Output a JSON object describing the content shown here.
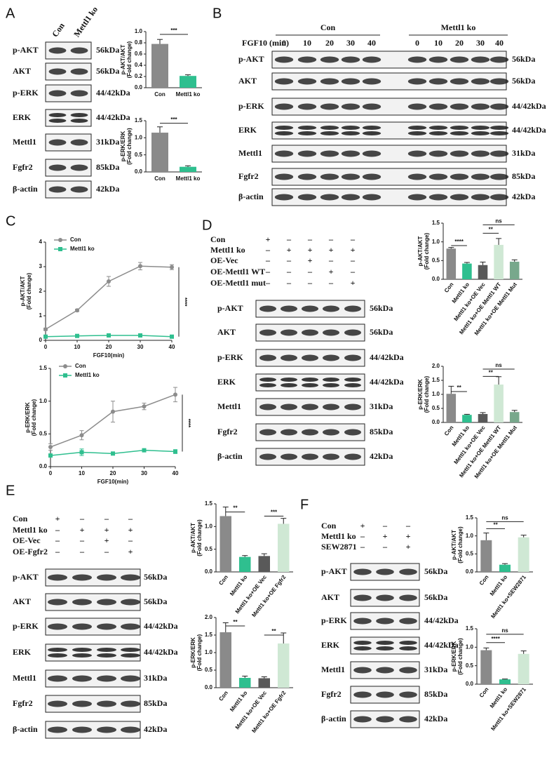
{
  "panels": [
    {
      "label": "A",
      "blot": {
        "lanes": [
          "Con",
          "Mettl1 ko"
        ],
        "rows": [
          {
            "name": "p-AKT",
            "size": "56kDa"
          },
          {
            "name": "AKT",
            "size": "56kDa"
          },
          {
            "name": "p-ERK",
            "size": "44/42kDa"
          },
          {
            "name": "ERK",
            "size": "44/42kDa"
          },
          {
            "name": "Mettl1",
            "size": "31kDa"
          },
          {
            "name": "Fgfr2",
            "size": "85kDa"
          },
          {
            "name": "β-actin",
            "size": "42kDa"
          }
        ]
      }
    },
    {
      "label": "B",
      "blot": {
        "groups": [
          "Con",
          "Mettl1 ko"
        ],
        "time_label": "FGF10 (min)",
        "times": [
          "0",
          "10",
          "20",
          "30",
          "40",
          "0",
          "10",
          "20",
          "30",
          "40"
        ],
        "rows": [
          {
            "name": "p-AKT",
            "size": "56kDa"
          },
          {
            "name": "AKT",
            "size": "56kDa"
          },
          {
            "name": "p-ERK",
            "size": "44/42kDa"
          },
          {
            "name": "ERK",
            "size": "44/42kDa"
          },
          {
            "name": "Mettl1",
            "size": "31kDa"
          },
          {
            "name": "Fgfr2",
            "size": "85kDa"
          },
          {
            "name": "β-actin",
            "size": "42kDa"
          }
        ]
      }
    },
    {
      "label": "C"
    },
    {
      "label": "D",
      "blot": {
        "conditions": [
          {
            "name": "Con",
            "signs": [
              "+",
              "–",
              "–",
              "–",
              "–"
            ]
          },
          {
            "name": "Mettl1 ko",
            "signs": [
              "–",
              "+",
              "+",
              "+",
              "+"
            ]
          },
          {
            "name": "OE-Vec",
            "signs": [
              "–",
              "–",
              "+",
              "–",
              "–"
            ]
          },
          {
            "name": "OE-Mettl1 WT",
            "signs": [
              "–",
              "–",
              "–",
              "+",
              "–"
            ]
          },
          {
            "name": "OE-Mettl1 mut",
            "signs": [
              "–",
              "–",
              "–",
              "–",
              "+"
            ]
          }
        ],
        "rows": [
          {
            "name": "p-AKT",
            "size": "56kDa"
          },
          {
            "name": "AKT",
            "size": "56kDa"
          },
          {
            "name": "p-ERK",
            "size": "44/42kDa"
          },
          {
            "name": "ERK",
            "size": "44/42kDa"
          },
          {
            "name": "Mettl1",
            "size": "31kDa"
          },
          {
            "name": "Fgfr2",
            "size": "85kDa"
          },
          {
            "name": "β-actin",
            "size": "42kDa"
          }
        ]
      }
    },
    {
      "label": "E",
      "blot": {
        "conditions": [
          {
            "name": "Con",
            "signs": [
              "+",
              "–",
              "–",
              "–"
            ]
          },
          {
            "name": "Mettl1 ko",
            "signs": [
              "–",
              "+",
              "+",
              "+"
            ]
          },
          {
            "name": "OE-Vec",
            "signs": [
              "–",
              "–",
              "+",
              "–"
            ]
          },
          {
            "name": "OE-Fgfr2",
            "signs": [
              "–",
              "–",
              "–",
              "+"
            ]
          }
        ],
        "rows": [
          {
            "name": "p-AKT",
            "size": "56kDa"
          },
          {
            "name": "AKT",
            "size": "56kDa"
          },
          {
            "name": "p-ERK",
            "size": "44/42kDa"
          },
          {
            "name": "ERK",
            "size": "44/42kDa"
          },
          {
            "name": "Mettl1",
            "size": "31kDa"
          },
          {
            "name": "Fgfr2",
            "size": "85kDa"
          },
          {
            "name": "β-actin",
            "size": "42kDa"
          }
        ]
      }
    },
    {
      "label": "F",
      "blot": {
        "conditions": [
          {
            "name": "Con",
            "signs": [
              "+",
              "–",
              "–"
            ]
          },
          {
            "name": "Mettl1 ko",
            "signs": [
              "–",
              "+",
              "+"
            ]
          },
          {
            "name": "SEW2871",
            "signs": [
              "–",
              "–",
              "+"
            ]
          }
        ],
        "rows": [
          {
            "name": "p-AKT",
            "size": "56kDa"
          },
          {
            "name": "AKT",
            "size": "56kDa"
          },
          {
            "name": "p-ERK",
            "size": "44/42kDa"
          },
          {
            "name": "ERK",
            "size": "44/42kDa"
          },
          {
            "name": "Mettl1",
            "size": "31kDa"
          },
          {
            "name": "Fgfr2",
            "size": "85kDa"
          },
          {
            "name": "β-actin",
            "size": "42kDa"
          }
        ]
      }
    }
  ],
  "chart_data": [
    {
      "type": "bar",
      "y_label": "p-AKT/AKT",
      "y_sublabel": "(Fold change)",
      "categories": [
        "Con",
        "Mettl1 ko"
      ],
      "values": [
        0.78,
        0.21
      ],
      "errors": [
        0.08,
        0.02
      ],
      "colors": [
        "#8a8a8a",
        "#2fbf8f"
      ],
      "ylim": [
        0,
        1
      ],
      "yticks": [
        {
          "value": 0,
          "label": "0.0"
        },
        {
          "value": 0.2,
          "label": "0.2"
        },
        {
          "value": 0.4,
          "label": "0.4"
        },
        {
          "value": 0.6,
          "label": "0.6"
        },
        {
          "value": 0.8,
          "label": "0.8"
        },
        {
          "value": 1,
          "label": "1.0"
        }
      ],
      "significance": [
        "***"
      ]
    },
    {
      "type": "bar",
      "y_label": "p-ERK/ERK",
      "y_sublabel": "(Fold change)",
      "categories": [
        "Con",
        "Mettl1 ko"
      ],
      "values": [
        1.15,
        0.15
      ],
      "errors": [
        0.17,
        0.03
      ],
      "colors": [
        "#8a8a8a",
        "#2fbf8f"
      ],
      "ylim": [
        0,
        1.5
      ],
      "yticks": [
        {
          "value": 0,
          "label": "0.0"
        },
        {
          "value": 0.5,
          "label": "0.5"
        },
        {
          "value": 1,
          "label": "1.0"
        },
        {
          "value": 1.5,
          "label": "1.5"
        }
      ],
      "significance": [
        "***"
      ]
    },
    {
      "type": "line",
      "y_label": "p-AKT/AKT",
      "y_sublabel": "(Fold change)",
      "x_label": "FGF10(min)",
      "x": [
        0,
        10,
        20,
        30,
        40
      ],
      "xlim": [
        0,
        40
      ],
      "xticks": [
        0,
        10,
        20,
        30,
        40
      ],
      "ylim": [
        0,
        4
      ],
      "yticks": [
        0,
        1,
        2,
        3,
        4
      ],
      "series": [
        {
          "name": "Con",
          "color": "#8c8c8c",
          "values": [
            0.45,
            1.22,
            2.4,
            3.02,
            2.98
          ],
          "errors": [
            0.05,
            0.05,
            0.2,
            0.15,
            0.1
          ]
        },
        {
          "name": "Mettl1 ko",
          "color": "#2fbf8f",
          "values": [
            0.15,
            0.18,
            0.2,
            0.2,
            0.15
          ],
          "errors": [
            0.02,
            0.02,
            0.02,
            0.02,
            0.02
          ]
        }
      ],
      "significance": [
        "****"
      ]
    },
    {
      "type": "line",
      "y_label": "p-ERK/ERK",
      "y_sublabel": "(Fold change)",
      "x_label": "FGF10(min)",
      "x": [
        0,
        10,
        20,
        30,
        40
      ],
      "xlim": [
        0,
        40
      ],
      "xticks": [
        0,
        10,
        20,
        30,
        40
      ],
      "ylim": [
        0,
        1.5
      ],
      "yticks": [
        {
          "value": 0,
          "label": "0.0"
        },
        {
          "value": 0.5,
          "label": "0.5"
        },
        {
          "value": 1,
          "label": "1.0"
        },
        {
          "value": 1.5,
          "label": "1.5"
        }
      ],
      "series": [
        {
          "name": "Con",
          "color": "#8c8c8c",
          "values": [
            0.3,
            0.48,
            0.84,
            0.92,
            1.1
          ],
          "errors": [
            0.05,
            0.07,
            0.16,
            0.05,
            0.11
          ]
        },
        {
          "name": "Mettl1 ko",
          "color": "#2fbf8f",
          "values": [
            0.17,
            0.22,
            0.2,
            0.25,
            0.23
          ],
          "errors": [
            0.02,
            0.05,
            0.02,
            0.02,
            0.03
          ]
        }
      ],
      "significance": [
        "****"
      ]
    },
    {
      "type": "bar",
      "y_label": "p-AKT/AKT",
      "y_sublabel": "(Fold change)",
      "categories": [
        "Con",
        "Mettl1 ko",
        "Mettl1 ko+OE Vec",
        "Mettl1 ko+OE Mettl1 WT",
        "Mettl1 ko+OE Mettl1 Mut"
      ],
      "values": [
        0.82,
        0.42,
        0.38,
        0.92,
        0.47
      ],
      "errors": [
        0.03,
        0.03,
        0.08,
        0.17,
        0.05
      ],
      "colors": [
        "#8a8a8a",
        "#2fbf8f",
        "#595959",
        "#cfe8d4",
        "#78a88c"
      ],
      "ylim": [
        0,
        1.5
      ],
      "yticks": [
        {
          "value": 0,
          "label": "0.0"
        },
        {
          "value": 0.5,
          "label": "0.5"
        },
        {
          "value": 1,
          "label": "1.0"
        },
        {
          "value": 1.5,
          "label": "1.5"
        }
      ],
      "significance": [
        "****",
        "**",
        "ns"
      ]
    },
    {
      "type": "bar",
      "y_label": "p-ERK/ERK",
      "y_sublabel": "(Fold change)",
      "categories": [
        "Con",
        "Mettl1 ko",
        "Mettl1 ko+OE Vec",
        "Mettl1 ko+OE Mettl1 WT",
        "Mettl1 ko+OE Mettl1 Mut"
      ],
      "values": [
        1.02,
        0.27,
        0.3,
        1.35,
        0.37
      ],
      "errors": [
        0.27,
        0.02,
        0.05,
        0.28,
        0.06
      ],
      "colors": [
        "#8a8a8a",
        "#2fbf8f",
        "#595959",
        "#cfe8d4",
        "#78a88c"
      ],
      "ylim": [
        0,
        2
      ],
      "yticks": [
        {
          "value": 0,
          "label": "0.0"
        },
        {
          "value": 0.5,
          "label": "0.5"
        },
        {
          "value": 1,
          "label": "1.0"
        },
        {
          "value": 1.5,
          "label": "1.5"
        },
        {
          "value": 2,
          "label": "2.0"
        }
      ],
      "significance": [
        "**",
        "**",
        "ns"
      ]
    },
    {
      "type": "bar",
      "y_label": "p-AKT/AKT",
      "y_sublabel": "(Fold change)",
      "categories": [
        "Con",
        "Mettl1 ko",
        "Mettl1 ko+OE Vec",
        "Mettl1 ko+OE Fgfr2"
      ],
      "values": [
        1.23,
        0.33,
        0.35,
        1.06
      ],
      "errors": [
        0.2,
        0.03,
        0.05,
        0.12
      ],
      "colors": [
        "#8a8a8a",
        "#2fbf8f",
        "#595959",
        "#cfe8d4"
      ],
      "ylim": [
        0,
        1.5
      ],
      "yticks": [
        {
          "value": 0,
          "label": "0.0"
        },
        {
          "value": 0.5,
          "label": "0.5"
        },
        {
          "value": 1,
          "label": "1.0"
        },
        {
          "value": 1.5,
          "label": "1.5"
        }
      ],
      "significance": [
        "**",
        "***"
      ]
    },
    {
      "type": "bar",
      "y_label": "p-ERK/ERK",
      "y_sublabel": "(Fold change)",
      "categories": [
        "Con",
        "Mettl1 ko",
        "Mettl1 ko+OE Vec",
        "Mettl1 ko+OE Fgfr2"
      ],
      "values": [
        1.58,
        0.28,
        0.27,
        1.26
      ],
      "errors": [
        0.27,
        0.05,
        0.04,
        0.3
      ],
      "colors": [
        "#8a8a8a",
        "#2fbf8f",
        "#595959",
        "#cfe8d4"
      ],
      "ylim": [
        0,
        2
      ],
      "yticks": [
        {
          "value": 0,
          "label": "0.0"
        },
        {
          "value": 0.5,
          "label": "0.5"
        },
        {
          "value": 1,
          "label": "1.0"
        },
        {
          "value": 1.5,
          "label": "1.5"
        },
        {
          "value": 2,
          "label": "2.0"
        }
      ],
      "significance": [
        "**",
        "**"
      ]
    },
    {
      "type": "bar",
      "y_label": "p-AKT/AKT",
      "y_sublabel": "(Fold change)",
      "categories": [
        "Con",
        "Mettl1 ko",
        "Mettl1 ko+SEW2871"
      ],
      "values": [
        0.88,
        0.2,
        0.96
      ],
      "errors": [
        0.2,
        0.03,
        0.06
      ],
      "colors": [
        "#8a8a8a",
        "#2fbf8f",
        "#cfe8d4"
      ],
      "ylim": [
        0,
        1.5
      ],
      "yticks": [
        {
          "value": 0,
          "label": "0.0"
        },
        {
          "value": 0.5,
          "label": "0.5"
        },
        {
          "value": 1,
          "label": "1.0"
        },
        {
          "value": 1.5,
          "label": "1.5"
        }
      ],
      "significance": [
        "**",
        "ns"
      ]
    },
    {
      "type": "bar",
      "y_label": "p-ERK/ERK",
      "y_sublabel": "(Fold change)",
      "categories": [
        "Con",
        "Mettl1 ko",
        "Mettl1 ko+SEW2871"
      ],
      "values": [
        0.92,
        0.13,
        0.82
      ],
      "errors": [
        0.06,
        0.01,
        0.08
      ],
      "colors": [
        "#8a8a8a",
        "#2fbf8f",
        "#cfe8d4"
      ],
      "ylim": [
        0,
        1.5
      ],
      "yticks": [
        {
          "value": 0,
          "label": "0.0"
        },
        {
          "value": 0.5,
          "label": "0.5"
        },
        {
          "value": 1,
          "label": "1.0"
        },
        {
          "value": 1.5,
          "label": "1.5"
        }
      ],
      "significance": [
        "****",
        "ns"
      ]
    }
  ]
}
